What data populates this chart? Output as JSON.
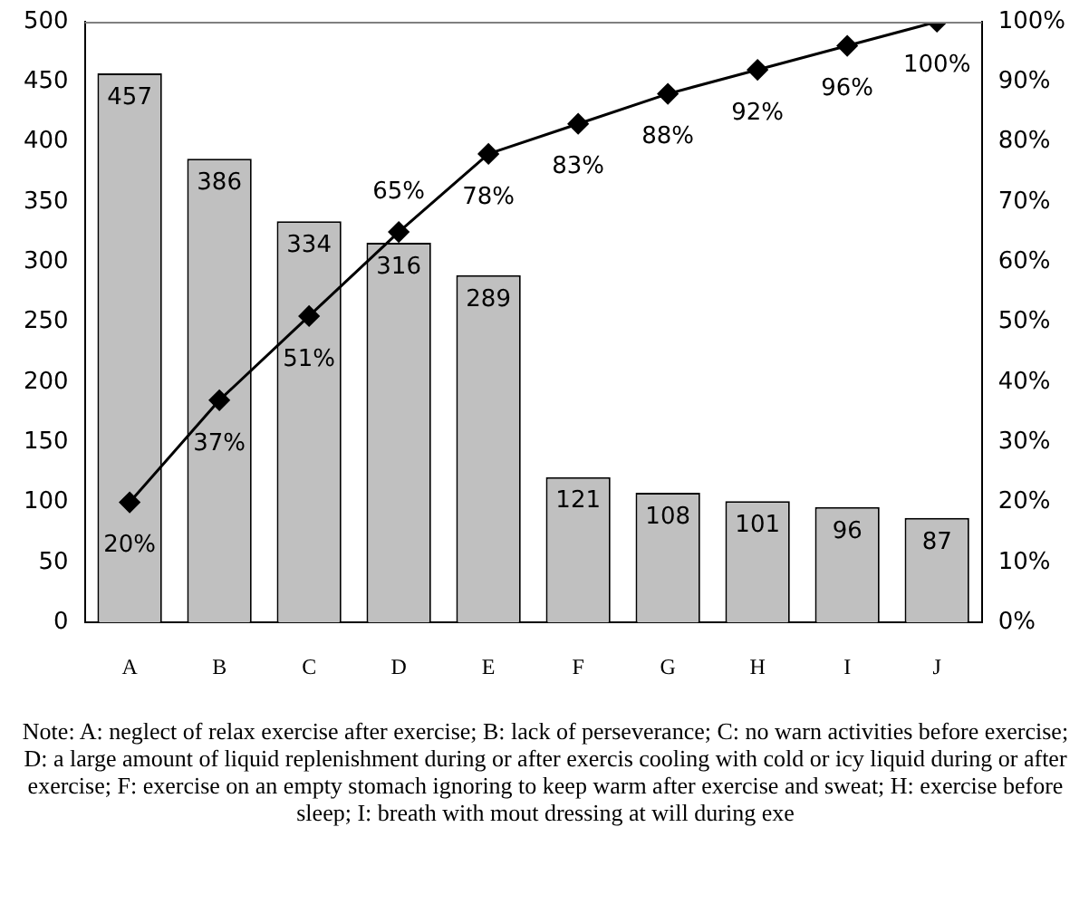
{
  "chart_data": {
    "type": "bar",
    "categories": [
      "A",
      "B",
      "C",
      "D",
      "E",
      "F",
      "G",
      "H",
      "I",
      "J"
    ],
    "series": [
      {
        "color": "#c0c0c0",
        "values": [
          457,
          386,
          334,
          316,
          289,
          121,
          108,
          101,
          96,
          87
        ]
      },
      {
        "type": "line",
        "axis": "y2",
        "color": "#000000",
        "marker": "diamond",
        "value_labels": [
          "20%",
          "37%",
          "51%",
          "65%",
          "78%",
          "83%",
          "88%",
          "92%",
          "96%",
          "100%"
        ],
        "values": [
          20,
          37,
          51,
          65,
          78,
          83,
          88,
          92,
          96,
          100
        ]
      }
    ],
    "ylim": [
      0,
      500
    ],
    "yticks": [
      0,
      50,
      100,
      150,
      200,
      250,
      300,
      350,
      400,
      450,
      500
    ],
    "y2lim": [
      0,
      100
    ],
    "y2ticks": [
      {
        "value": 0,
        "label": "0%"
      },
      {
        "value": 10,
        "label": "10%"
      },
      {
        "value": 20,
        "label": "20%"
      },
      {
        "value": 30,
        "label": "30%"
      },
      {
        "value": 40,
        "label": "40%"
      },
      {
        "value": 50,
        "label": "50%"
      },
      {
        "value": 60,
        "label": "60%"
      },
      {
        "value": 70,
        "label": "70%"
      },
      {
        "value": 80,
        "label": "80%"
      },
      {
        "value": 90,
        "label": "90%"
      },
      {
        "value": 100,
        "label": "100%"
      }
    ],
    "data_labels": true,
    "grid": false,
    "legend": false,
    "annotations": [
      "Note: A: neglect of relax exercise after exercise; B: lack of perseverance; C: no warn activities before exercise; D: a large amount of liquid replenishment during or after exercis cooling with cold or icy liquid during or after exercise; F: exercise on an empty stomach ignoring to keep warm after exercise and sweat; H: exercise before sleep; I: breath with mout dressing at will during exe"
    ]
  }
}
